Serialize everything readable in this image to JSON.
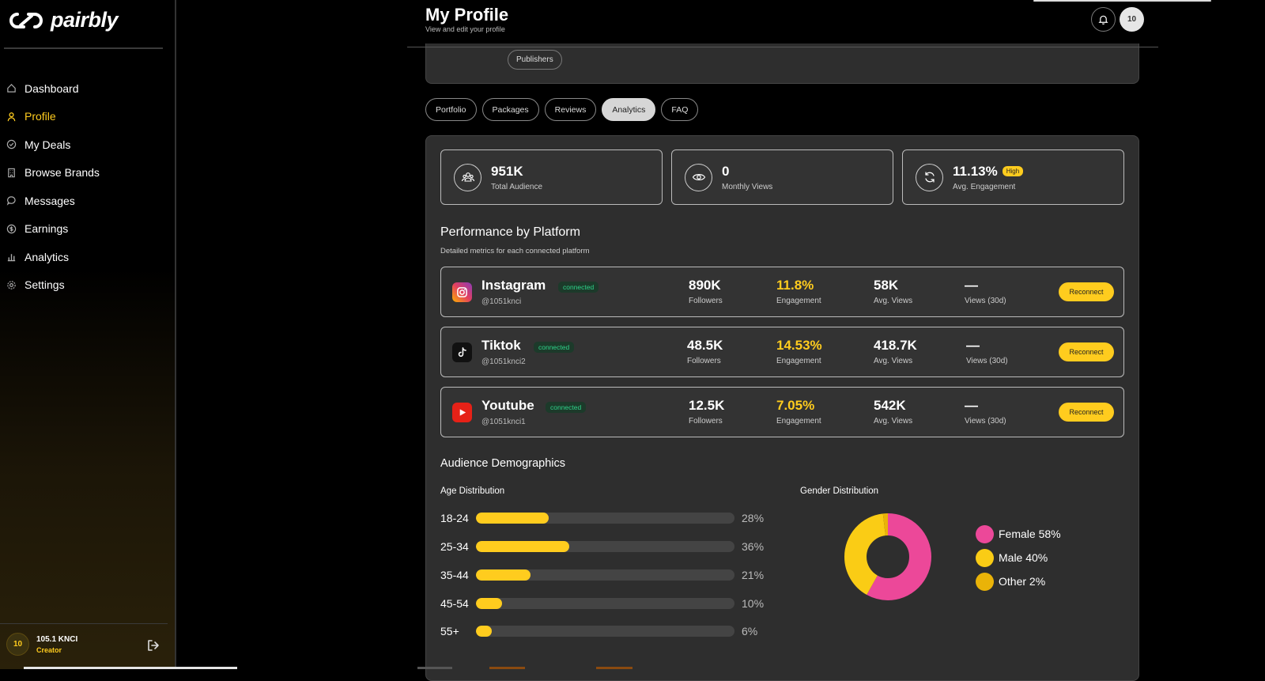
{
  "brand": {
    "name": "pairbly",
    "mark": "cp"
  },
  "sidebar": {
    "items": [
      {
        "label": "Dashboard",
        "icon": "home-icon",
        "active": false
      },
      {
        "label": "Profile",
        "icon": "user-icon",
        "active": true
      },
      {
        "label": "My Deals",
        "icon": "check-circle-icon",
        "active": false
      },
      {
        "label": "Browse Brands",
        "icon": "building-icon",
        "active": false
      },
      {
        "label": "Messages",
        "icon": "chat-icon",
        "active": false
      },
      {
        "label": "Earnings",
        "icon": "dollar-icon",
        "active": false
      },
      {
        "label": "Analytics",
        "icon": "bar-chart-icon",
        "active": false
      },
      {
        "label": "Settings",
        "icon": "gear-icon",
        "active": false
      }
    ],
    "user": {
      "initials": "10",
      "name": "105.1 KNCI",
      "role": "Creator"
    }
  },
  "header": {
    "title": "My Profile",
    "subtitle": "View and edit your profile",
    "avatar_initials": "10"
  },
  "profile_card": {
    "pill": "Publishers"
  },
  "tabs": [
    {
      "label": "Portfolio",
      "active": false
    },
    {
      "label": "Packages",
      "active": false
    },
    {
      "label": "Reviews",
      "active": false
    },
    {
      "label": "Analytics",
      "active": true
    },
    {
      "label": "FAQ",
      "active": false
    }
  ],
  "stats": {
    "audience": {
      "value": "951K",
      "label": "Total Audience"
    },
    "views": {
      "value": "0",
      "label": "Monthly Views"
    },
    "engagement": {
      "value": "11.13%",
      "label": "Avg. Engagement",
      "badge": "High"
    }
  },
  "performance": {
    "title": "Performance by Platform",
    "subtitle": "Detailed metrics for each connected platform",
    "reconnect_label": "Reconnect",
    "platforms": [
      {
        "name": "Instagram",
        "handle": "@1051knci",
        "status": "connected",
        "followers": "890K",
        "engagement": "11.8%",
        "avg_views": "58K",
        "views30": "—"
      },
      {
        "name": "Tiktok",
        "handle": "@1051knci2",
        "status": "connected",
        "followers": "48.5K",
        "engagement": "14.53%",
        "avg_views": "418.7K",
        "views30": "—"
      },
      {
        "name": "Youtube",
        "handle": "@1051knci1",
        "status": "connected",
        "followers": "12.5K",
        "engagement": "7.05%",
        "avg_views": "542K",
        "views30": "—"
      }
    ],
    "labels": {
      "followers": "Followers",
      "engagement": "Engagement",
      "avg_views": "Avg. Views",
      "views30": "Views (30d)"
    }
  },
  "demographics": {
    "title": "Audience Demographics",
    "age_title": "Age Distribution",
    "gender_title": "Gender Distribution",
    "age": [
      {
        "range": "18-24",
        "pct_label": "28%",
        "pct": 28
      },
      {
        "range": "25-34",
        "pct_label": "36%",
        "pct": 36
      },
      {
        "range": "35-44",
        "pct_label": "21%",
        "pct": 21
      },
      {
        "range": "45-54",
        "pct_label": "10%",
        "pct": 10
      },
      {
        "range": "55+",
        "pct_label": "6%",
        "pct": 6
      }
    ],
    "gender": [
      {
        "label": "Female 58%",
        "value": 58,
        "color": "#ec4899"
      },
      {
        "label": "Male 40%",
        "value": 40,
        "color": "#facc15"
      },
      {
        "label": "Other 2%",
        "value": 2,
        "color": "#eab308"
      }
    ]
  },
  "colors": {
    "accent": "#ffcc1e",
    "connected": "#2fd38a"
  }
}
